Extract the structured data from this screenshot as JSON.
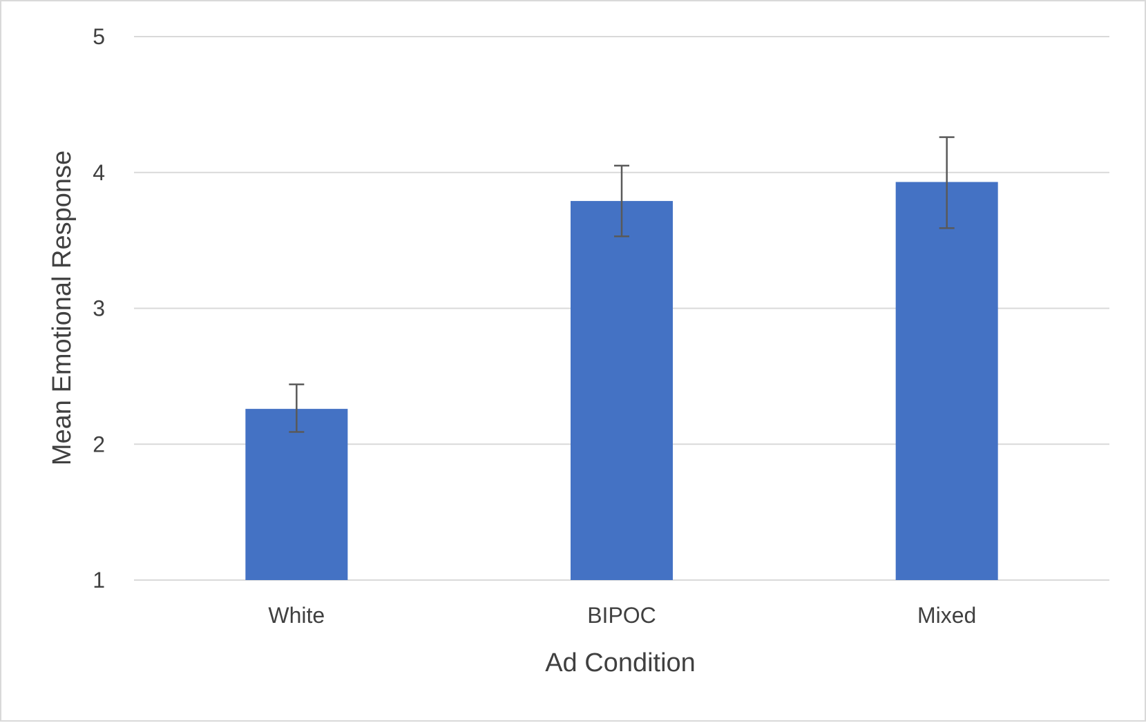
{
  "chart_data": {
    "type": "bar",
    "title": "",
    "xlabel": "Ad Condition",
    "ylabel": "Mean Emotional Response",
    "categories": [
      "White",
      "BIPOC",
      "Mixed"
    ],
    "values": [
      2.26,
      3.79,
      3.93
    ],
    "error_upper": [
      2.44,
      4.05,
      4.26
    ],
    "error_lower": [
      2.09,
      3.53,
      3.59
    ],
    "ylim": [
      1,
      5
    ],
    "yticks": [
      1,
      2,
      3,
      4,
      5
    ],
    "grid": true,
    "legend": "none",
    "bar_color": "#4472C4",
    "error_bar_color": "#595959"
  }
}
